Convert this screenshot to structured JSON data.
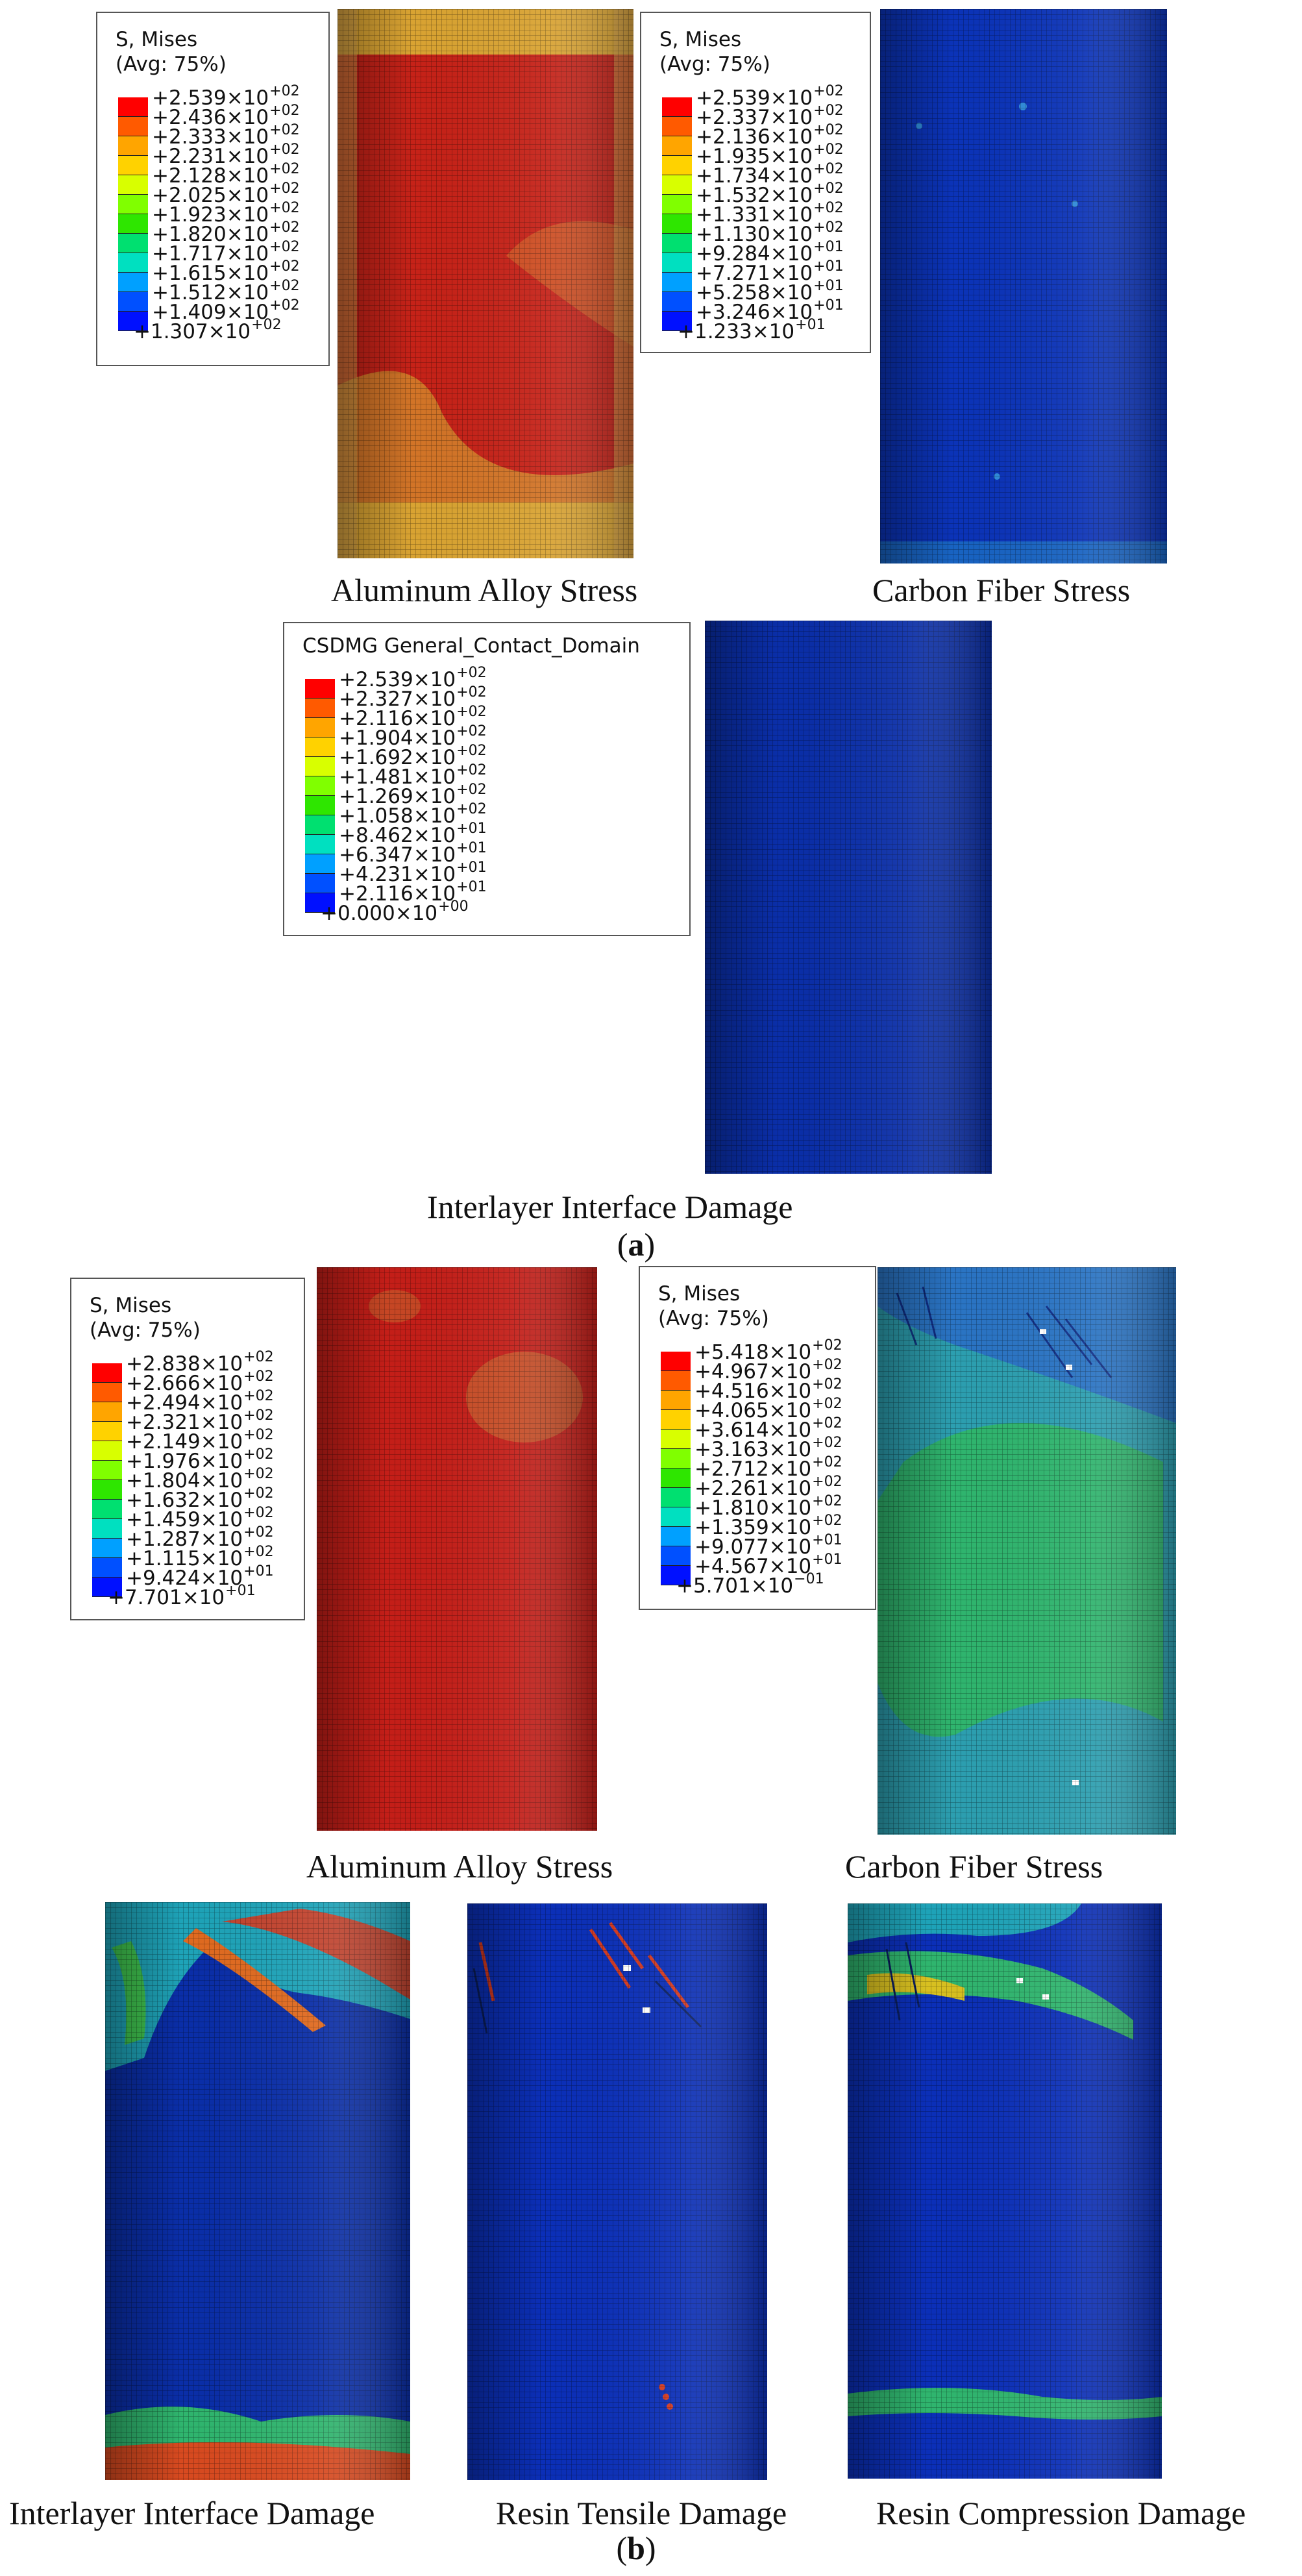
{
  "panel_a": {
    "label": "a",
    "legend1": {
      "title": [
        "S, Mises",
        "(Avg: 75%)"
      ],
      "values": [
        "+2.539×10",
        "+2.436×10",
        "+2.333×10",
        "+2.231×10",
        "+2.128×10",
        "+2.025×10",
        "+1.923×10",
        "+1.820×10",
        "+1.717×10",
        "+1.615×10",
        "+1.512×10",
        "+1.409×10",
        "+1.307×10"
      ],
      "exponents": [
        "+02",
        "+02",
        "+02",
        "+02",
        "+02",
        "+02",
        "+02",
        "+02",
        "+02",
        "+02",
        "+02",
        "+02",
        "+02"
      ]
    },
    "legend2": {
      "title": [
        "S, Mises",
        "(Avg: 75%)"
      ],
      "values": [
        "+2.539×10",
        "+2.337×10",
        "+2.136×10",
        "+1.935×10",
        "+1.734×10",
        "+1.532×10",
        "+1.331×10",
        "+1.130×10",
        "+9.284×10",
        "+7.271×10",
        "+5.258×10",
        "+3.246×10",
        "+1.233×10"
      ],
      "exponents": [
        "+02",
        "+02",
        "+02",
        "+02",
        "+02",
        "+02",
        "+02",
        "+02",
        "+01",
        "+01",
        "+01",
        "+01",
        "+01"
      ]
    },
    "legend3": {
      "title": [
        "CSDMG General_Contact_Domain"
      ],
      "values": [
        "+2.539×10",
        "+2.327×10",
        "+2.116×10",
        "+1.904×10",
        "+1.692×10",
        "+1.481×10",
        "+1.269×10",
        "+1.058×10",
        "+8.462×10",
        "+6.347×10",
        "+4.231×10",
        "+2.116×10",
        "+0.000×10"
      ],
      "exponents": [
        "+02",
        "+02",
        "+02",
        "+02",
        "+02",
        "+02",
        "+02",
        "+02",
        "+01",
        "+01",
        "+01",
        "+01",
        "+00"
      ]
    },
    "captions": {
      "al": "Aluminum Alloy Stress",
      "cf": "Carbon Fiber Stress",
      "iid": "Interlayer Interface Damage"
    }
  },
  "panel_b": {
    "label": "b",
    "legend1": {
      "title": [
        "S, Mises",
        "(Avg: 75%)"
      ],
      "values": [
        "+2.838×10",
        "+2.666×10",
        "+2.494×10",
        "+2.321×10",
        "+2.149×10",
        "+1.976×10",
        "+1.804×10",
        "+1.632×10",
        "+1.459×10",
        "+1.287×10",
        "+1.115×10",
        "+9.424×10",
        "+7.701×10"
      ],
      "exponents": [
        "+02",
        "+02",
        "+02",
        "+02",
        "+02",
        "+02",
        "+02",
        "+02",
        "+02",
        "+02",
        "+02",
        "+01",
        "+01"
      ]
    },
    "legend2": {
      "title": [
        "S, Mises",
        "(Avg: 75%)"
      ],
      "values": [
        "+5.418×10",
        "+4.967×10",
        "+4.516×10",
        "+4.065×10",
        "+3.614×10",
        "+3.163×10",
        "+2.712×10",
        "+2.261×10",
        "+1.810×10",
        "+1.359×10",
        "+9.077×10",
        "+4.567×10",
        "+5.701×10"
      ],
      "exponents": [
        "+02",
        "+02",
        "+02",
        "+02",
        "+02",
        "+02",
        "+02",
        "+02",
        "+02",
        "+02",
        "+01",
        "+01",
        "−01"
      ]
    },
    "captions": {
      "al": "Aluminum Alloy Stress",
      "cf": "Carbon Fiber Stress",
      "iid": "Interlayer Interface Damage",
      "rtd": "Resin Tensile Damage",
      "rcd": "Resin Compression Damage"
    }
  },
  "colors": {
    "scale": [
      "#ff0000",
      "#ff5a00",
      "#ffa500",
      "#ffd200",
      "#d8ff00",
      "#80ff00",
      "#2ee600",
      "#00e070",
      "#00e0c0",
      "#00a0ff",
      "#0050ff",
      "#0010ff"
    ],
    "al_red": "#c8201a",
    "al_yellow": "#d4b23a",
    "mesh_blue": "#0b2fb8",
    "cf_green": "#2fb56e",
    "cf_teal": "#2c9fb0"
  }
}
